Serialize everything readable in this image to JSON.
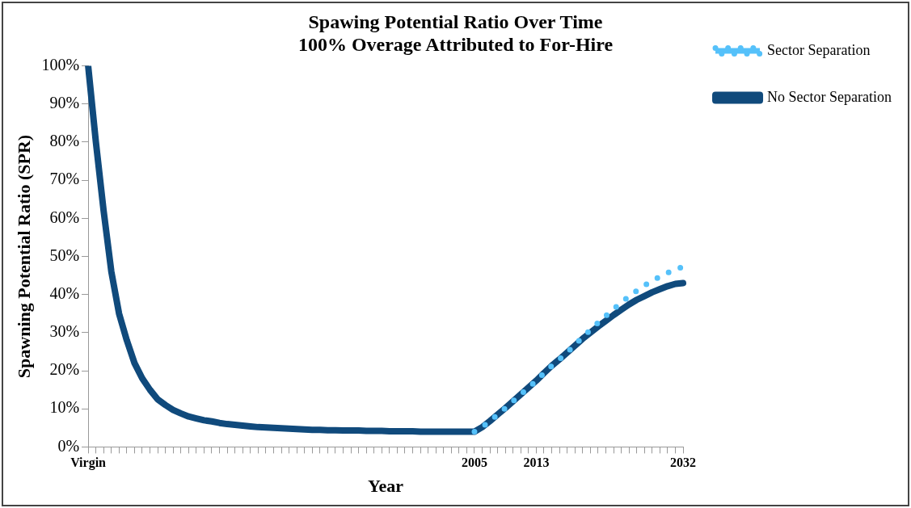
{
  "chart_data": {
    "type": "line",
    "title": "Spawing Potential Ratio Over Time\n100% Overage Attributed to For-Hire",
    "xlabel": "Year",
    "ylabel": "Spawning Potential Ratio (SPR)",
    "categories": [
      "Virgin",
      null,
      null,
      null,
      null,
      null,
      null,
      null,
      null,
      null,
      null,
      null,
      null,
      null,
      null,
      null,
      null,
      null,
      null,
      null,
      null,
      null,
      null,
      null,
      null,
      null,
      null,
      null,
      null,
      null,
      null,
      null,
      null,
      null,
      null,
      null,
      null,
      null,
      null,
      null,
      null,
      null,
      null,
      null,
      null,
      null,
      null,
      null,
      null,
      null,
      "2005",
      null,
      null,
      null,
      null,
      null,
      null,
      null,
      "2013",
      null,
      null,
      null,
      null,
      null,
      null,
      null,
      null,
      null,
      null,
      null,
      null,
      null,
      null,
      null,
      null,
      null,
      null,
      "2032"
    ],
    "series": [
      {
        "name": "No Sector Separation",
        "color": "#104a7c",
        "line_style": "solid",
        "values": [
          100,
          80,
          62,
          46,
          35,
          28,
          22,
          18,
          15,
          12.5,
          11,
          9.7,
          8.8,
          8,
          7.5,
          7,
          6.7,
          6.3,
          6,
          5.8,
          5.6,
          5.4,
          5.2,
          5.1,
          5,
          4.9,
          4.8,
          4.7,
          4.6,
          4.5,
          4.5,
          4.4,
          4.4,
          4.3,
          4.3,
          4.3,
          4.2,
          4.2,
          4.2,
          4.1,
          4.1,
          4.1,
          4.1,
          4,
          4,
          4,
          4,
          4,
          4,
          4,
          4,
          5.2,
          6.8,
          8.5,
          10.2,
          12,
          13.8,
          15.6,
          17.4,
          19.4,
          21.3,
          23,
          24.8,
          26.6,
          28.4,
          30,
          31.6,
          33.1,
          34.6,
          36,
          37.4,
          38.6,
          39.6,
          40.6,
          41.4,
          42.2,
          42.8,
          43
        ]
      },
      {
        "name": "Sector Separation",
        "color": "#55c1fa",
        "line_style": "dotted",
        "values": [
          null,
          null,
          null,
          null,
          null,
          null,
          null,
          null,
          null,
          null,
          null,
          null,
          null,
          null,
          null,
          null,
          null,
          null,
          null,
          null,
          null,
          null,
          null,
          null,
          null,
          null,
          null,
          null,
          null,
          null,
          null,
          null,
          null,
          null,
          null,
          null,
          null,
          null,
          null,
          null,
          null,
          null,
          null,
          null,
          null,
          null,
          null,
          null,
          null,
          null,
          4,
          5.2,
          6.8,
          8.5,
          10.2,
          12,
          13.8,
          15.6,
          17.4,
          19.4,
          21.3,
          23,
          24.8,
          26.8,
          28.8,
          30.7,
          32.6,
          34.4,
          36.2,
          37.9,
          39.5,
          41,
          42.4,
          43.6,
          44.7,
          45.7,
          46.6,
          47.3
        ]
      }
    ],
    "ylim": [
      0,
      100
    ],
    "yticks": [
      {
        "value": 0,
        "label": "0%"
      },
      {
        "value": 10,
        "label": "10%"
      },
      {
        "value": 20,
        "label": "20%"
      },
      {
        "value": 30,
        "label": "30%"
      },
      {
        "value": 40,
        "label": "40%"
      },
      {
        "value": 50,
        "label": "50%"
      },
      {
        "value": 60,
        "label": "60%"
      },
      {
        "value": 70,
        "label": "70%"
      },
      {
        "value": 80,
        "label": "80%"
      },
      {
        "value": 90,
        "label": "90%"
      },
      {
        "value": 100,
        "label": "100%"
      }
    ],
    "grid": false,
    "legend": "right",
    "marker": "none"
  }
}
